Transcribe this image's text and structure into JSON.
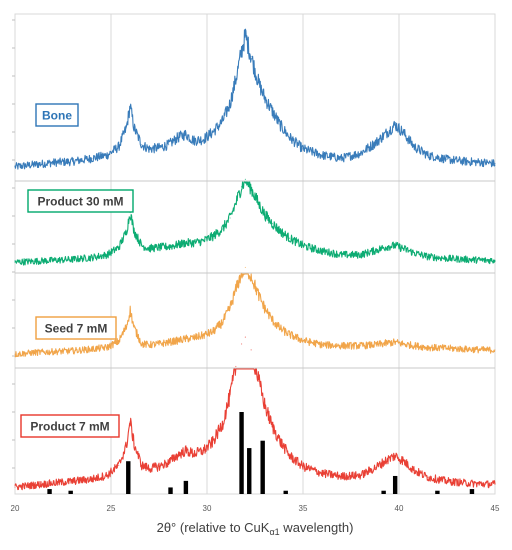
{
  "chart_data": {
    "type": "line",
    "xlabel": "2θ° (relative to CuK",
    "xlabel_sub": "α1",
    "xlabel_tail": " wavelength)",
    "xlim": [
      20,
      45
    ],
    "x_ticks": [
      "20",
      "25",
      "30",
      "35",
      "40",
      "45"
    ],
    "grid": true,
    "series": [
      {
        "name": "Bone",
        "color": "#2e75b6",
        "label_color": "#2e75b6",
        "border_color": "#2e75b6",
        "x": [
          20,
          21,
          22,
          23,
          24,
          24.8,
          25.4,
          25.8,
          26.0,
          26.2,
          26.6,
          27,
          27.5,
          28,
          28.5,
          28.9,
          29.3,
          29.8,
          30.3,
          30.8,
          31.2,
          31.5,
          31.8,
          32.0,
          32.3,
          32.7,
          33.0,
          33.4,
          33.8,
          34.3,
          35,
          36,
          37,
          38,
          38.8,
          39.4,
          39.8,
          40.2,
          40.8,
          41.5,
          42.5,
          43.5,
          44.5,
          45
        ],
        "y": [
          0.5,
          0.7,
          0.9,
          1.0,
          1.3,
          1.6,
          2.4,
          4.2,
          6.3,
          4.2,
          2.6,
          2.2,
          2.3,
          2.6,
          3.3,
          3.6,
          3.0,
          3.1,
          3.8,
          4.8,
          6.5,
          8.8,
          11.5,
          13.0,
          11.0,
          8.4,
          7.1,
          5.8,
          4.5,
          3.3,
          2.2,
          1.6,
          1.3,
          1.8,
          2.8,
          3.8,
          4.5,
          3.8,
          2.4,
          1.6,
          1.2,
          1.0,
          0.9,
          0.8
        ]
      },
      {
        "name": "Product 30 mM",
        "color": "#00a86b",
        "label_color": "#404040",
        "border_color": "#00a86b",
        "x": [
          20,
          21,
          22,
          23,
          24,
          24.8,
          25.4,
          25.8,
          26.0,
          26.2,
          26.6,
          27,
          27.5,
          28,
          28.5,
          28.9,
          29.3,
          29.8,
          30.3,
          30.8,
          31.2,
          31.5,
          31.8,
          32.0,
          32.3,
          32.7,
          33.0,
          33.4,
          33.8,
          34.3,
          35,
          36,
          37,
          38,
          38.8,
          39.4,
          39.8,
          40.2,
          40.8,
          41.5,
          42.5,
          43.5,
          44.5,
          45
        ],
        "y": [
          0.2,
          0.3,
          0.4,
          0.5,
          0.7,
          1.0,
          1.8,
          3.5,
          5.6,
          3.6,
          2.0,
          1.7,
          1.8,
          1.9,
          2.1,
          2.3,
          2.3,
          2.5,
          3.0,
          3.8,
          5.0,
          6.6,
          8.4,
          9.2,
          8.2,
          6.5,
          5.4,
          4.4,
          3.6,
          2.8,
          2.0,
          1.4,
          1.0,
          1.0,
          1.5,
          1.9,
          2.0,
          1.7,
          1.2,
          0.8,
          0.6,
          0.5,
          0.4,
          0.4
        ]
      },
      {
        "name": "Seed 7 mM",
        "color": "#f0a040",
        "label_color": "#404040",
        "border_color": "#f0a040",
        "x": [
          20,
          21,
          22,
          23,
          24,
          24.8,
          25.4,
          25.8,
          26.0,
          26.2,
          26.6,
          27,
          27.5,
          28,
          28.5,
          28.9,
          29.3,
          29.8,
          30.3,
          30.8,
          31.2,
          31.5,
          31.8,
          32.0,
          32.3,
          32.7,
          33.0,
          33.4,
          33.8,
          34.3,
          35,
          36,
          37,
          38,
          38.8,
          39.4,
          39.8,
          40.2,
          40.8,
          41.5,
          42.5,
          43.5,
          44.5,
          45
        ],
        "y": [
          0.2,
          0.4,
          0.5,
          0.6,
          0.8,
          1.0,
          1.7,
          3.4,
          5.3,
          3.3,
          1.4,
          1.3,
          1.4,
          1.6,
          1.8,
          2.0,
          2.1,
          2.4,
          2.8,
          3.9,
          5.6,
          7.7,
          9.6,
          10.3,
          9.3,
          7.0,
          5.6,
          4.2,
          3.2,
          2.5,
          1.8,
          1.3,
          1.2,
          1.2,
          1.3,
          1.5,
          1.6,
          1.4,
          1.2,
          1.0,
          0.9,
          0.8,
          0.7,
          0.7
        ]
      },
      {
        "name": "Product 7 mM",
        "color": "#e8362a",
        "label_color": "#404040",
        "border_color": "#e8362a",
        "x": [
          20,
          21,
          22,
          23,
          24,
          24.8,
          25.4,
          25.8,
          26.0,
          26.2,
          26.6,
          27,
          27.5,
          28,
          28.5,
          28.9,
          29.3,
          29.8,
          30.3,
          30.8,
          31.2,
          31.5,
          31.8,
          32.0,
          32.3,
          32.7,
          33.0,
          33.4,
          33.8,
          34.3,
          35,
          36,
          37,
          38,
          38.8,
          39.4,
          39.8,
          40.2,
          40.8,
          41.5,
          42.5,
          43.5,
          44.5,
          45
        ],
        "y": [
          0.2,
          0.4,
          0.6,
          0.8,
          1.0,
          1.4,
          2.4,
          4.4,
          6.9,
          4.6,
          2.4,
          2.1,
          2.3,
          2.7,
          3.5,
          3.9,
          3.6,
          3.9,
          4.8,
          6.6,
          9.5,
          12.5,
          14.8,
          15.5,
          14.2,
          11.0,
          8.6,
          6.4,
          4.9,
          3.4,
          2.3,
          1.6,
          1.3,
          1.4,
          2.2,
          3.0,
          3.4,
          2.9,
          1.9,
          1.2,
          0.8,
          0.6,
          0.5,
          0.5
        ]
      }
    ],
    "reference_sticks": {
      "color": "#000000",
      "x": [
        21.8,
        22.9,
        25.9,
        28.1,
        28.9,
        31.8,
        32.2,
        32.9,
        34.1,
        39.2,
        39.8,
        42.0,
        43.8
      ],
      "intensity": [
        0.06,
        0.04,
        0.4,
        0.08,
        0.16,
        1.0,
        0.56,
        0.65,
        0.04,
        0.04,
        0.22,
        0.04,
        0.06
      ]
    }
  }
}
